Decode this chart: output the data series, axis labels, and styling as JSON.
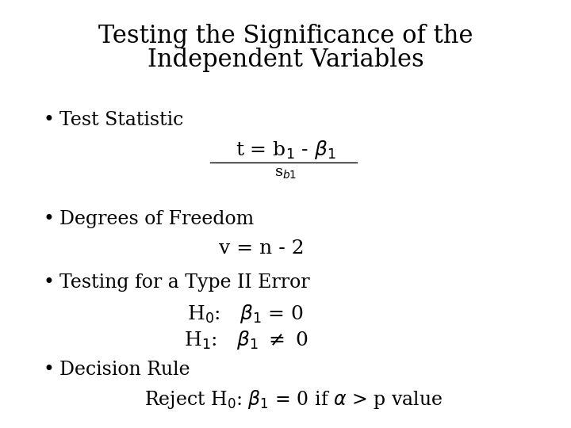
{
  "title_line1": "Testing the Significance of the",
  "title_line2": "Independent Variables",
  "background_color": "#ffffff",
  "text_color": "#000000",
  "title_fontsize": 22,
  "body_fontsize": 17,
  "formula_fontsize": 18,
  "small_fontsize": 14,
  "bullet": "•",
  "bullet1": "Test Statistic",
  "bullet2": "Degrees of Freedom",
  "bullet3": "Testing for a Type II Error",
  "bullet4": "Decision Rule"
}
